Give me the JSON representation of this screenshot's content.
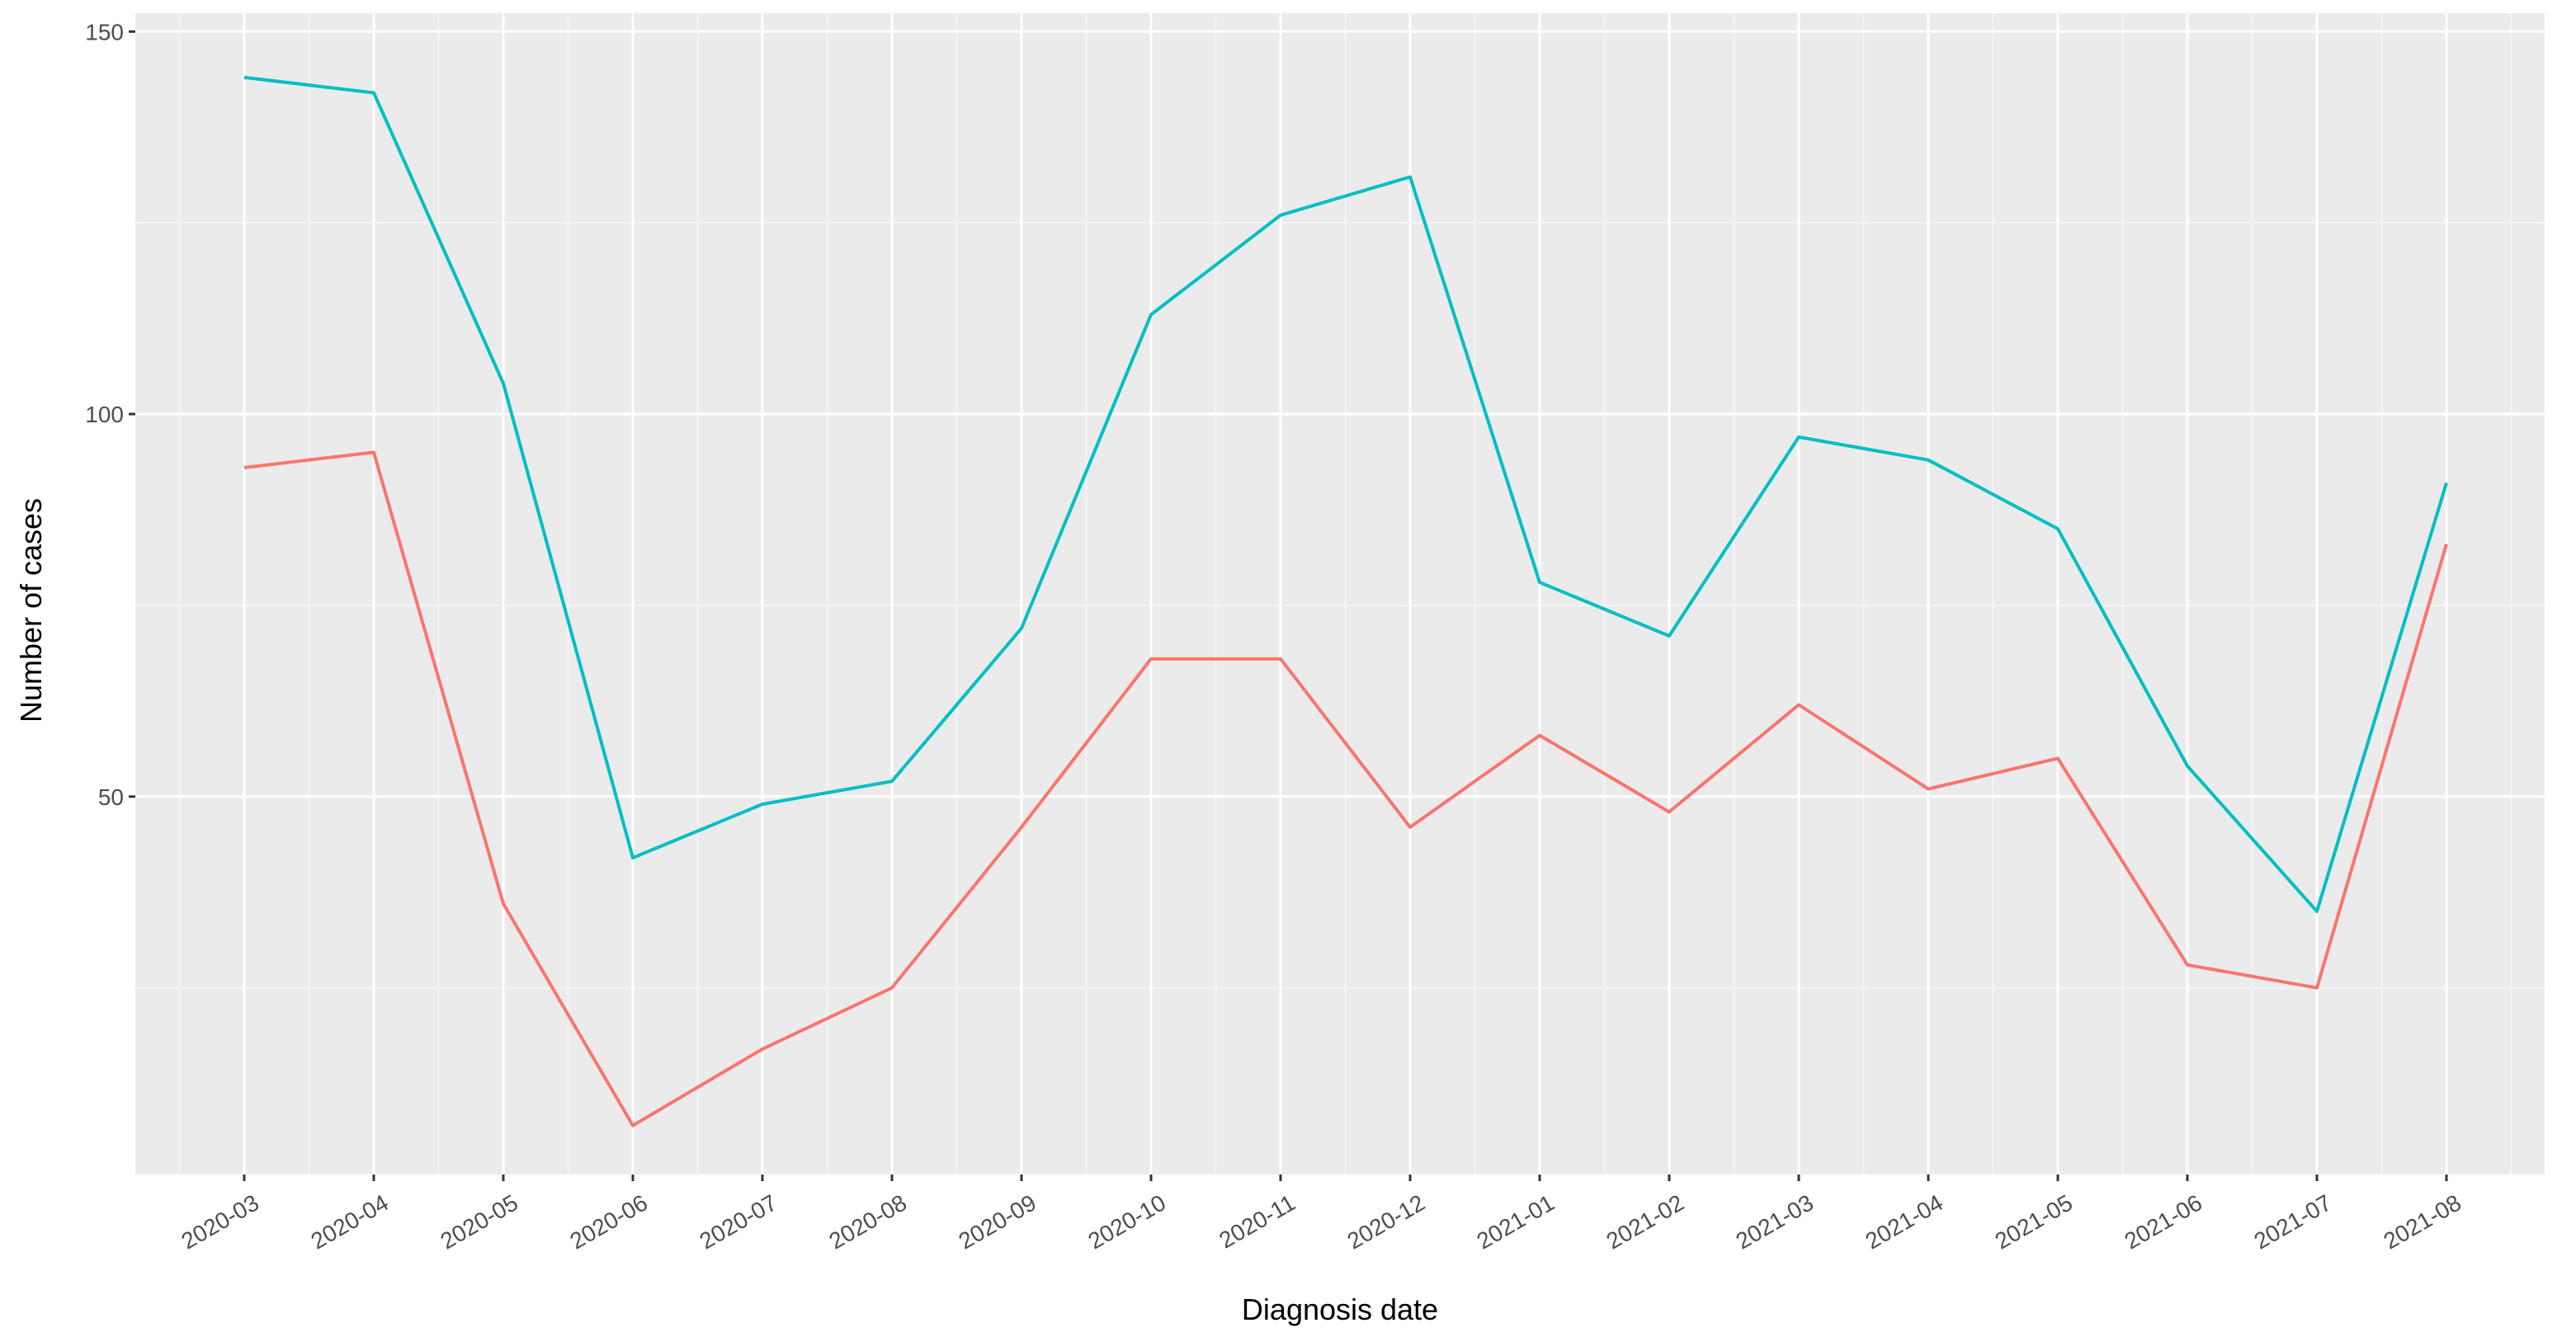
{
  "chart_data": {
    "type": "line",
    "x_label": "Diagnosis date",
    "y_label": "Number of cases",
    "categories": [
      "2020-03",
      "2020-04",
      "2020-05",
      "2020-06",
      "2020-07",
      "2020-08",
      "2020-09",
      "2020-10",
      "2020-11",
      "2020-12",
      "2021-01",
      "2021-02",
      "2021-03",
      "2021-04",
      "2021-05",
      "2021-06",
      "2021-07",
      "2021-08"
    ],
    "series": [
      {
        "color": "#F8766D",
        "values": [
          93,
          95,
          36,
          7,
          17,
          25,
          46,
          68,
          68,
          46,
          58,
          48,
          62,
          51,
          55,
          28,
          25,
          83
        ]
      },
      {
        "color": "#00BFC4",
        "values": [
          144,
          142,
          104,
          42,
          49,
          52,
          72,
          113,
          126,
          131,
          78,
          71,
          97,
          94,
          85,
          54,
          35,
          91
        ]
      }
    ],
    "ylim": [
      0.6,
      152.4
    ],
    "yticks": [
      50,
      100,
      150
    ],
    "minor_yticks": [
      25,
      75,
      125
    ],
    "grid": true,
    "panel_color": "#EBEBEB"
  }
}
